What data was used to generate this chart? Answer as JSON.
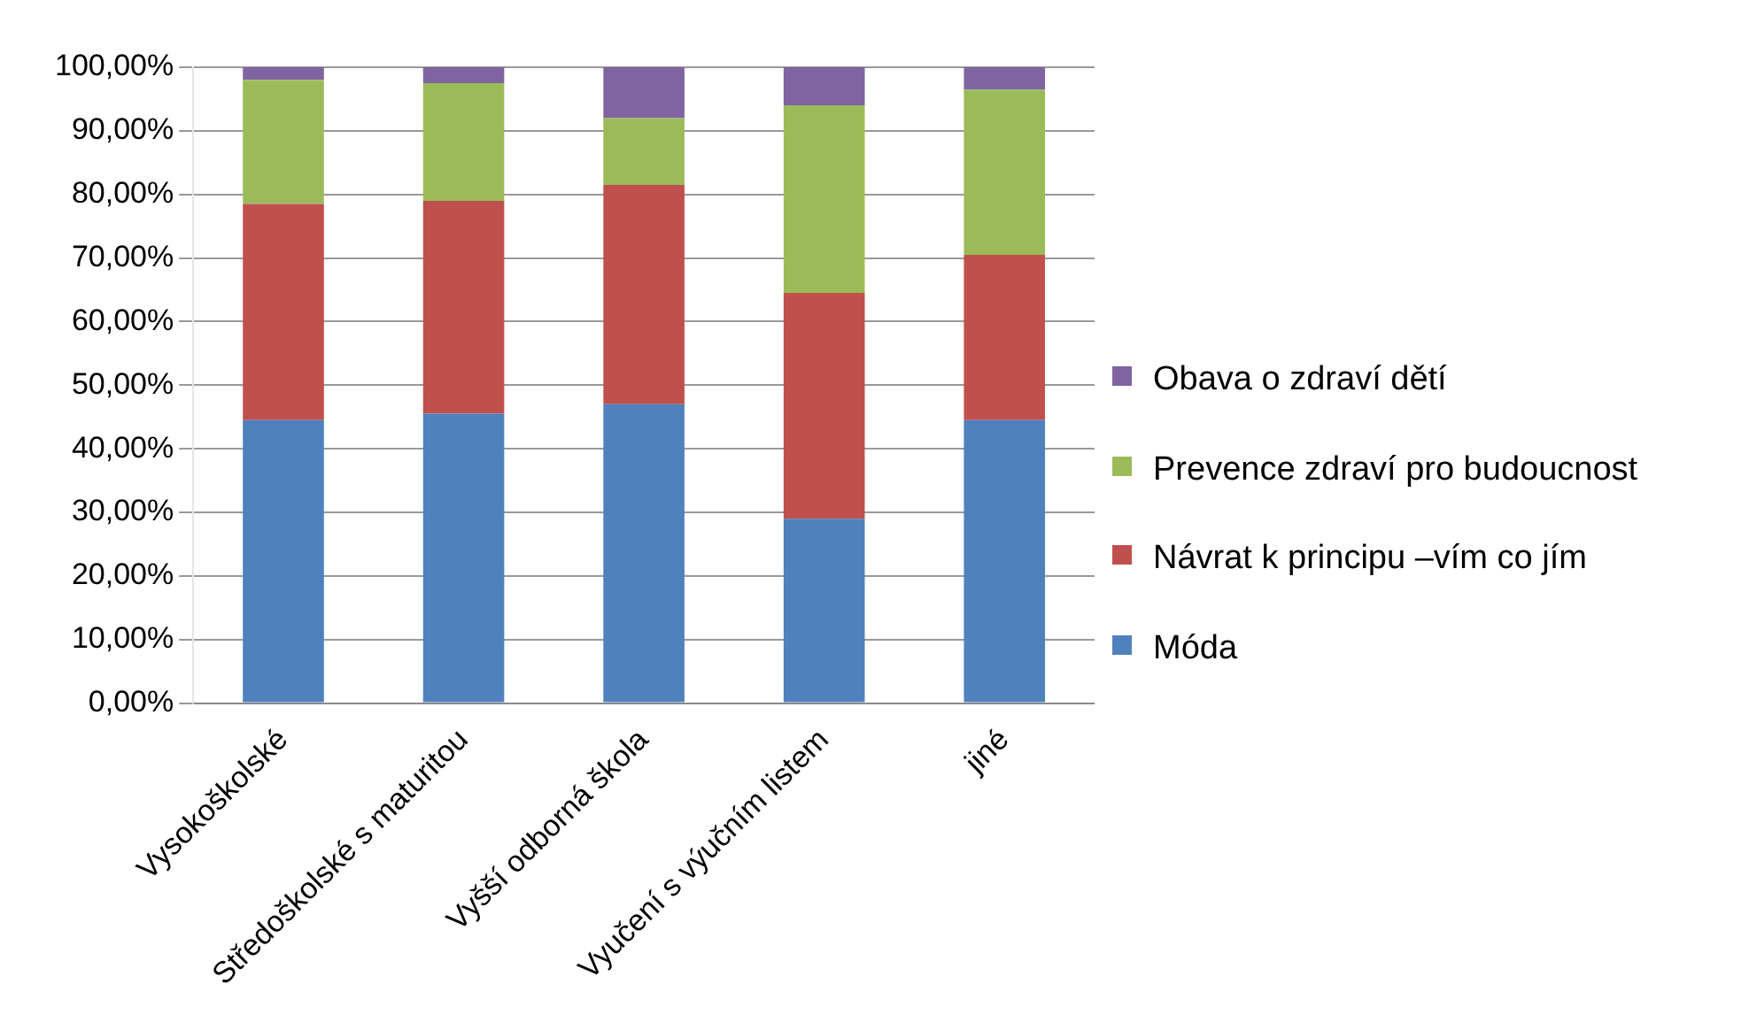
{
  "chart_data": {
    "type": "bar",
    "stacked": true,
    "categories": [
      "Vysokoškolské",
      "Středoškolské s maturitou",
      "Vyšší odborná škola",
      "Vyučení s výučním listem",
      "jiné"
    ],
    "series": [
      {
        "name": "Móda",
        "color": "#4f81bd",
        "values": [
          44.5,
          45.5,
          47,
          29,
          44.5
        ]
      },
      {
        "name": "Návrat k principu –vím co jím",
        "color": "#c0504d",
        "values": [
          34,
          33.5,
          34.5,
          35.5,
          26
        ]
      },
      {
        "name": "Prevence zdraví pro budoucnost",
        "color": "#9bbb59",
        "values": [
          19.5,
          18.5,
          10.5,
          29.5,
          26
        ]
      },
      {
        "name": "Obava o zdraví dětí",
        "color": "#8064a2",
        "values": [
          2,
          2.5,
          8,
          6,
          3.5
        ]
      }
    ],
    "ylim": [
      0,
      100
    ],
    "yticks": [
      {
        "value": 0,
        "label": "0,00%"
      },
      {
        "value": 10,
        "label": "10,00%"
      },
      {
        "value": 20,
        "label": "20,00%"
      },
      {
        "value": 30,
        "label": "30,00%"
      },
      {
        "value": 40,
        "label": "40,00%"
      },
      {
        "value": 50,
        "label": "50,00%"
      },
      {
        "value": 60,
        "label": "60,00%"
      },
      {
        "value": 70,
        "label": "70,00%"
      },
      {
        "value": 80,
        "label": "80,00%"
      },
      {
        "value": 90,
        "label": "90,00%"
      },
      {
        "value": 100,
        "label": "100,00%"
      }
    ],
    "grid": "y",
    "legend": "right"
  }
}
